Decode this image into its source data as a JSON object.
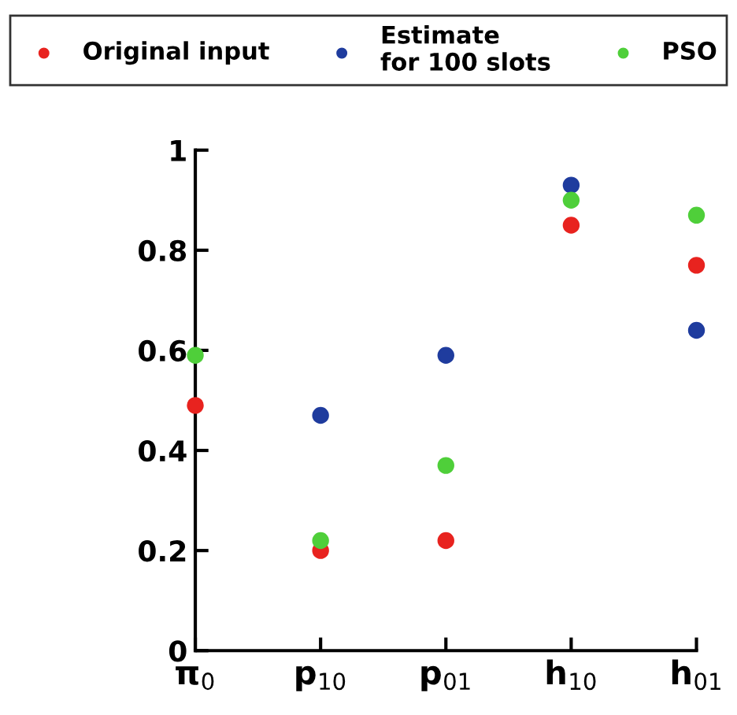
{
  "chart_data": {
    "type": "scatter",
    "categories": [
      "π$_{0}$",
      "p$_{10}$",
      "p$_{01}$",
      "h$_{10}$",
      "h$_{01}$"
    ],
    "series": [
      {
        "name": "Original input",
        "color": "#e8231f",
        "values": [
          0.49,
          0.2,
          0.22,
          0.85,
          0.77
        ]
      },
      {
        "name": "Estimate\nfor 100 slots",
        "color": "#1f3c9e",
        "values": [
          null,
          0.47,
          0.59,
          0.93,
          0.64
        ]
      },
      {
        "name": "PSO",
        "color": "#4fcf3a",
        "values": [
          0.59,
          0.22,
          0.37,
          0.9,
          0.87
        ]
      }
    ],
    "ylim": [
      0,
      1
    ],
    "yticks": [
      0,
      0.2,
      0.4,
      0.6,
      0.8,
      1
    ],
    "grid": false,
    "legend": "top",
    "marker": "circle"
  }
}
